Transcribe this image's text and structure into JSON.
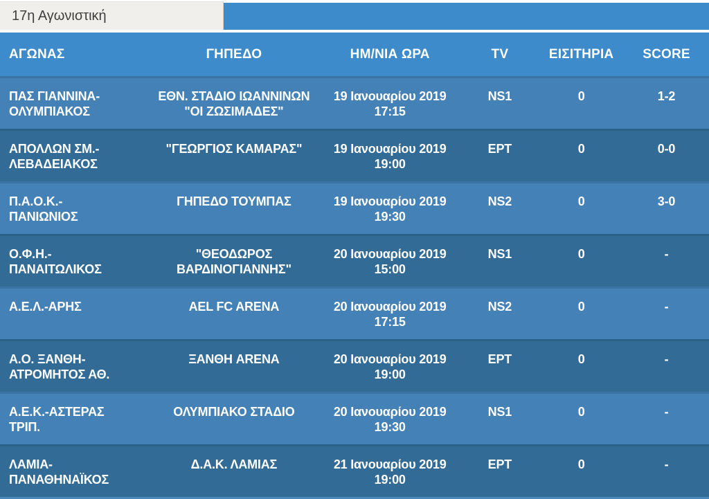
{
  "tab": {
    "label": "17η Αγωνιστική"
  },
  "theme": {
    "header_blue": "#3d8bca",
    "row_light": "#4481b6",
    "row_dark": "#326b96",
    "tab_background": "#f0efec",
    "tab_text": "#3f3f3f",
    "table_text": "#ffffff",
    "separator_white": "#fbfbfa"
  },
  "table": {
    "headers": [
      "ΑΓΩΝΑΣ",
      "ΓΗΠΕΔΟ",
      "ΗΜ/ΝΙΑ ΩΡΑ",
      "TV",
      "ΕΙΣΙΤΗΡΙΑ",
      "SCORE"
    ],
    "rows": [
      {
        "match": "ΠΑΣ ΓΙΑΝΝΙΝΑ-\nΟΛΥΜΠΙΑΚΟΣ",
        "stadium": "ΕΘΝ. ΣΤΑΔΙΟ ΙΩΑΝΝΙΝΩΝ\n\"ΟΙ ΖΩΣΙΜΑΔΕΣ\"",
        "datetime": "19 Ιανουαρίου 2019\n17:15",
        "tv": "NS1",
        "tickets": "0",
        "score": "1-2"
      },
      {
        "match": "ΑΠΟΛΛΩΝ ΣΜ.-\nΛΕΒΑΔΕΙΑΚΟΣ",
        "stadium": "\"ΓΕΩΡΓΙΟΣ ΚΑΜΑΡΑΣ\"",
        "datetime": "19 Ιανουαρίου 2019\n19:00",
        "tv": "ΕΡΤ",
        "tickets": "0",
        "score": "0-0"
      },
      {
        "match": "Π.Α.Ο.Κ.-\nΠΑΝΙΩΝΙΟΣ",
        "stadium": "ΓΗΠΕΔΟ ΤΟΥΜΠΑΣ",
        "datetime": "19 Ιανουαρίου 2019\n19:30",
        "tv": "NS2",
        "tickets": "0",
        "score": "3-0"
      },
      {
        "match": "Ο.Φ.Η.-\nΠΑΝΑΙΤΩΛΙΚΟΣ",
        "stadium": "\"ΘΕΟΔΩΡΟΣ\nΒΑΡΔΙΝΟΓΙΑΝΝΗΣ\"",
        "datetime": "20 Ιανουαρίου 2019\n15:00",
        "tv": "NS1",
        "tickets": "0",
        "score": "-"
      },
      {
        "match": "Α.Ε.Λ.-ΑΡΗΣ",
        "stadium": "AEL FC ARENA",
        "datetime": "20 Ιανουαρίου 2019\n17:15",
        "tv": "NS2",
        "tickets": "0",
        "score": "-"
      },
      {
        "match": "Α.Ο. ΞΑΝΘΗ-\nΑΤΡΟΜΗΤΟΣ ΑΘ.",
        "stadium": "ΞΑΝΘΗ ARENA",
        "datetime": "20 Ιανουαρίου 2019\n19:00",
        "tv": "ΕΡΤ",
        "tickets": "0",
        "score": "-"
      },
      {
        "match": "Α.Ε.Κ.-ΑΣΤΕΡΑΣ\nΤΡΙΠ.",
        "stadium": "ΟΛΥΜΠΙΑΚΟ ΣΤΑΔΙΟ",
        "datetime": "20 Ιανουαρίου 2019\n19:30",
        "tv": "NS1",
        "tickets": "0",
        "score": "-"
      },
      {
        "match": "ΛΑΜΙΑ-\nΠΑΝΑΘΗΝΑΪΚΟΣ",
        "stadium": "Δ.Α.Κ. ΛΑΜΙΑΣ",
        "datetime": "21 Ιανουαρίου 2019\n19:00",
        "tv": "ΕΡΤ",
        "tickets": "0",
        "score": "-"
      }
    ]
  }
}
